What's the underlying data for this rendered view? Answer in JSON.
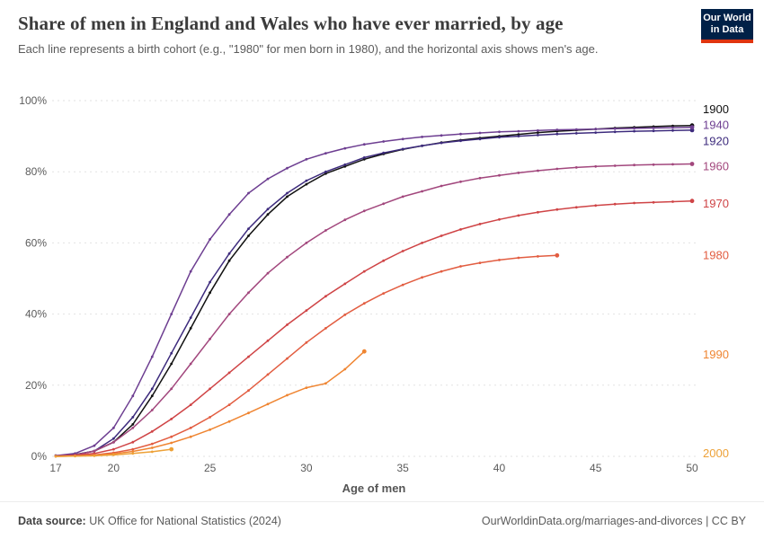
{
  "header": {
    "title": "Share of men in England and Wales who have ever married, by age",
    "subtitle": "Each line represents a birth cohort (e.g., \"1980\" for men born in 1980), and the horizontal axis shows men's age.",
    "logo": {
      "line1": "Our World",
      "line2": "in Data",
      "bg_color": "#002147",
      "accent_color": "#e0350f"
    }
  },
  "footer": {
    "source_label": "Data source:",
    "source_text": " UK Office for National Statistics (2024)",
    "credit": "OurWorldinData.org/marriages-and-divorces | CC BY"
  },
  "chart_data": {
    "type": "line",
    "title": "Share of men in England and Wales who have ever married, by age",
    "xlabel": "Age of men",
    "ylabel": "",
    "x_range": [
      17,
      50
    ],
    "x_ticks": [
      17,
      20,
      25,
      30,
      35,
      40,
      45,
      50
    ],
    "y_ticks": [
      0,
      20,
      40,
      60,
      80,
      100
    ],
    "ylim": [
      0,
      100
    ],
    "grid": "horizontal-dashed",
    "legend_position": "right-edge-labels",
    "grid_color": "#e2e2e2",
    "series": [
      {
        "name": "1900",
        "color": "#111111",
        "start_age": 17,
        "label_y": 97.5,
        "values": [
          0.2,
          0.5,
          1.5,
          4,
          9,
          17,
          26,
          36,
          46,
          55,
          62,
          68,
          73,
          76.5,
          79.5,
          81.5,
          83.5,
          85,
          86.3,
          87.3,
          88.2,
          88.9,
          89.5,
          90,
          90.5,
          91,
          91.4,
          91.7,
          92,
          92.3,
          92.5,
          92.7,
          92.9,
          93
        ]
      },
      {
        "name": "1920",
        "color": "#3d2b7d",
        "start_age": 17,
        "label_y": 88.5,
        "values": [
          0.1,
          0.4,
          1.5,
          5,
          11,
          19,
          29,
          39,
          49,
          57,
          64,
          69.5,
          74,
          77.5,
          80,
          82,
          84,
          85.3,
          86.4,
          87.3,
          88.1,
          88.7,
          89.2,
          89.7,
          90,
          90.3,
          90.6,
          90.8,
          91,
          91.2,
          91.4,
          91.5,
          91.6,
          91.7
        ]
      },
      {
        "name": "1940",
        "color": "#6d3e91",
        "start_age": 17,
        "label_y": 93,
        "values": [
          0.2,
          0.8,
          3,
          8,
          17,
          28,
          40,
          52,
          61,
          68,
          74,
          78,
          81,
          83.5,
          85.2,
          86.6,
          87.7,
          88.5,
          89.2,
          89.8,
          90.2,
          90.6,
          90.9,
          91.2,
          91.4,
          91.6,
          91.8,
          91.9,
          92,
          92.1,
          92.2,
          92.3,
          92.4,
          92.5
        ]
      },
      {
        "name": "1960",
        "color": "#a2477d",
        "start_age": 17,
        "label_y": 81.5,
        "values": [
          0.1,
          0.4,
          1.5,
          4,
          8,
          13,
          19,
          26,
          33,
          40,
          46,
          51.5,
          56,
          60,
          63.5,
          66.5,
          69,
          71,
          73,
          74.5,
          76,
          77.2,
          78.2,
          79,
          79.7,
          80.3,
          80.8,
          81.2,
          81.5,
          81.7,
          81.9,
          82,
          82.1,
          82.2
        ]
      },
      {
        "name": "1970",
        "color": "#cf4446",
        "start_age": 17,
        "label_y": 71,
        "values": [
          0.1,
          0.3,
          0.8,
          2,
          4,
          7,
          10.5,
          14.5,
          19,
          23.5,
          28,
          32.5,
          37,
          41,
          45,
          48.5,
          52,
          55,
          57.7,
          60,
          62,
          63.8,
          65.3,
          66.6,
          67.7,
          68.6,
          69.4,
          70,
          70.5,
          70.9,
          71.2,
          71.4,
          71.6,
          71.8
        ]
      },
      {
        "name": "1980",
        "color": "#e25d41",
        "start_age": 17,
        "label_y": 56.5,
        "values": [
          0,
          0.1,
          0.4,
          1,
          2,
          3.5,
          5.5,
          8,
          11,
          14.5,
          18.5,
          23,
          27.5,
          32,
          36,
          39.8,
          43,
          45.8,
          48.2,
          50.3,
          52,
          53.4,
          54.4,
          55.2,
          55.8,
          56.2,
          56.5
        ]
      },
      {
        "name": "1990",
        "color": "#ef8532",
        "start_age": 17,
        "label_y": 28.5,
        "values": [
          0,
          0.1,
          0.3,
          0.7,
          1.4,
          2.4,
          3.8,
          5.5,
          7.5,
          9.8,
          12.2,
          14.7,
          17.2,
          19.3,
          20.5,
          24.5,
          29.5
        ]
      },
      {
        "name": "2000",
        "color": "#eda137",
        "start_age": 17,
        "label_y": 0.8,
        "values": [
          0,
          0.05,
          0.15,
          0.4,
          0.8,
          1.3,
          2
        ]
      }
    ]
  }
}
